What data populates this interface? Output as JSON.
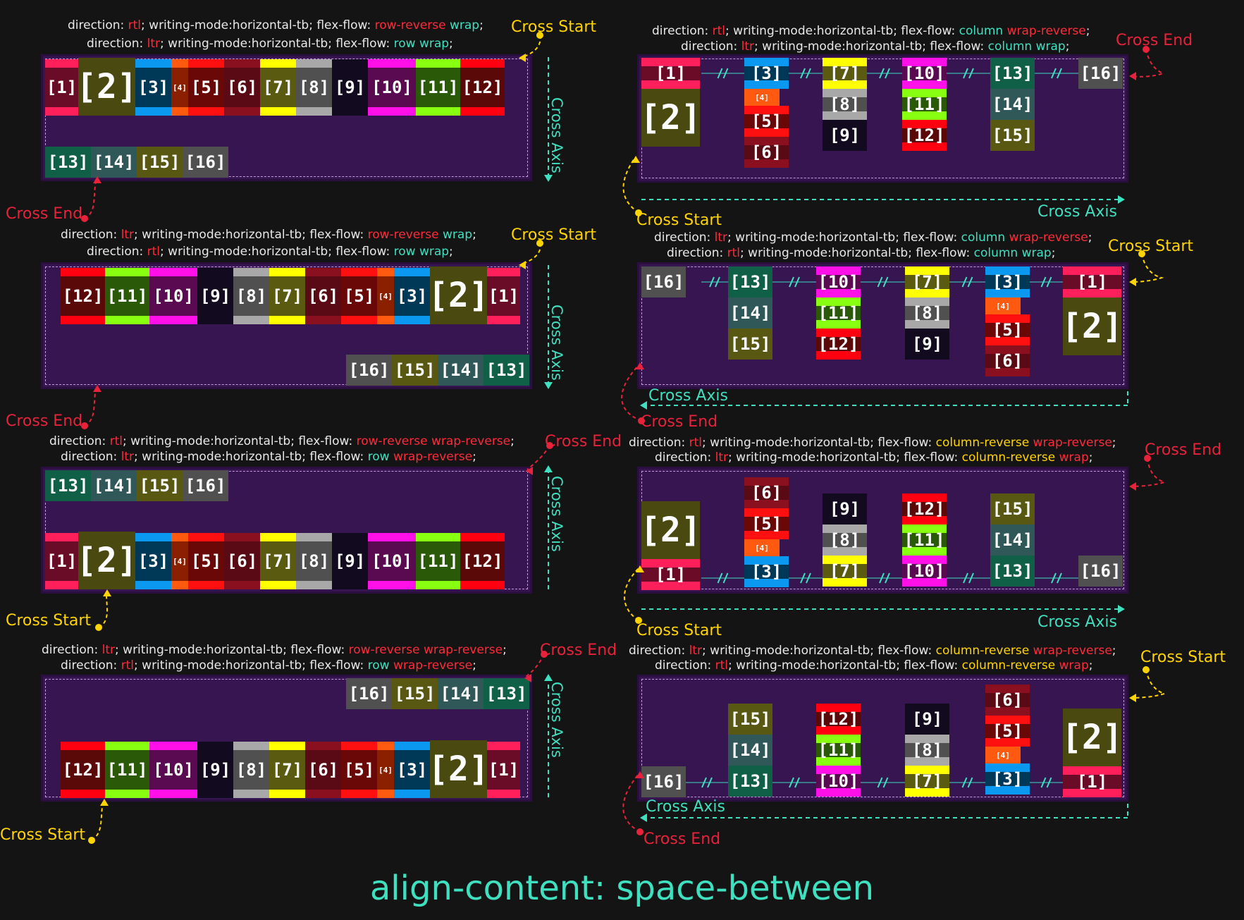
{
  "title": "align-content: space-between",
  "labels": {
    "cross_start": "Cross Start",
    "cross_end": "Cross End",
    "cross_axis": "Cross Axis"
  },
  "captions": {
    "p1": {
      "line1": [
        "direction: ",
        "rtl",
        "; writing-mode:horizontal-tb; flex-flow: ",
        "row-reverse",
        " ",
        "wrap",
        ";"
      ],
      "line2": [
        "direction: ",
        "ltr",
        "; writing-mode:horizontal-tb; flex-flow: ",
        "row",
        " ",
        "wrap",
        ";"
      ]
    },
    "p2": {
      "line1": [
        "direction: ",
        "ltr",
        "; writing-mode:horizontal-tb; flex-flow: ",
        "row-reverse",
        " ",
        "wrap",
        ";"
      ],
      "line2": [
        "direction: ",
        "rtl",
        "; writing-mode:horizontal-tb; flex-flow: ",
        "row",
        " ",
        "wrap",
        ";"
      ]
    },
    "p3": {
      "line1": [
        "direction: ",
        "rtl",
        "; writing-mode:horizontal-tb; flex-flow: ",
        "row-reverse",
        " ",
        "wrap-reverse",
        ";"
      ],
      "line2": [
        "direction: ",
        "ltr",
        "; writing-mode:horizontal-tb; flex-flow: ",
        "row",
        " ",
        "wrap-reverse",
        ";"
      ]
    },
    "p4": {
      "line1": [
        "direction: ",
        "ltr",
        "; writing-mode:horizontal-tb; flex-flow: ",
        "row-reverse",
        " ",
        "wrap-reverse",
        ";"
      ],
      "line2": [
        "direction: ",
        "rtl",
        "; writing-mode:horizontal-tb; flex-flow: ",
        "row",
        " ",
        "wrap-reverse",
        ";"
      ]
    },
    "p5": {
      "line1": [
        "direction: ",
        "rtl",
        "; writing-mode:horizontal-tb; flex-flow: ",
        "column",
        " ",
        "wrap-reverse",
        ";"
      ],
      "line2": [
        "direction: ",
        "ltr",
        "; writing-mode:horizontal-tb; flex-flow: ",
        "column",
        " ",
        "wrap",
        ";"
      ]
    },
    "p6": {
      "line1": [
        "direction: ",
        "ltr",
        "; writing-mode:horizontal-tb; flex-flow: ",
        "column",
        " ",
        "wrap-reverse",
        ";"
      ],
      "line2": [
        "direction: ",
        "rtl",
        "; writing-mode:horizontal-tb; flex-flow: ",
        "column",
        " ",
        "wrap",
        ";"
      ]
    },
    "p7": {
      "line1": [
        "direction: ",
        "rtl",
        "; writing-mode:horizontal-tb; flex-flow: ",
        "column-reverse",
        " ",
        "wrap-reverse",
        ";"
      ],
      "line2": [
        "direction: ",
        "ltr",
        "; writing-mode:horizontal-tb; flex-flow: ",
        "column-reverse",
        " ",
        "wrap",
        ";"
      ]
    },
    "p8": {
      "line1": [
        "direction: ",
        "ltr",
        "; writing-mode:horizontal-tb; flex-flow: ",
        "column-reverse",
        " ",
        "wrap-reverse",
        ";"
      ],
      "line2": [
        "direction: ",
        "rtl",
        "; writing-mode:horizontal-tb; flex-flow: ",
        "column-reverse",
        " ",
        "wrap",
        ";"
      ]
    }
  },
  "items": [
    "[1]",
    "[2]",
    "[3]",
    "[4]",
    "[5]",
    "[6]",
    "[7]",
    "[8]",
    "[9]",
    "[10]",
    "[11]",
    "[12]",
    "[13]",
    "[14]",
    "[15]",
    "[16]"
  ],
  "colors": {
    "background": "#141414",
    "panel": "#361550",
    "accent_red": "#ff2a3a",
    "accent_cyan": "#3fe0c0",
    "accent_yellow": "#ffd400",
    "item_outer": [
      "#ff1f5a",
      "#4a4a10",
      "#0a98f0",
      "#ff5a10",
      "#ff1010",
      "#8a1020",
      "#ffff00",
      "#a8a8a8",
      "#120a1e",
      "#ff10e8",
      "#88ff10",
      "#ff0010",
      "#106048",
      "#305858",
      "#585812",
      "#505050"
    ],
    "item_inner": [
      "#6a0c28",
      "#4a4a10",
      "#003858",
      "#8a2000",
      "#6a0808",
      "#5a0a14",
      "#5a5a10",
      "#505050",
      "#120a1e",
      "#5a0a50",
      "#2a5a08",
      "#5a0808",
      "#106048",
      "#305858",
      "#585812",
      "#505050"
    ]
  }
}
